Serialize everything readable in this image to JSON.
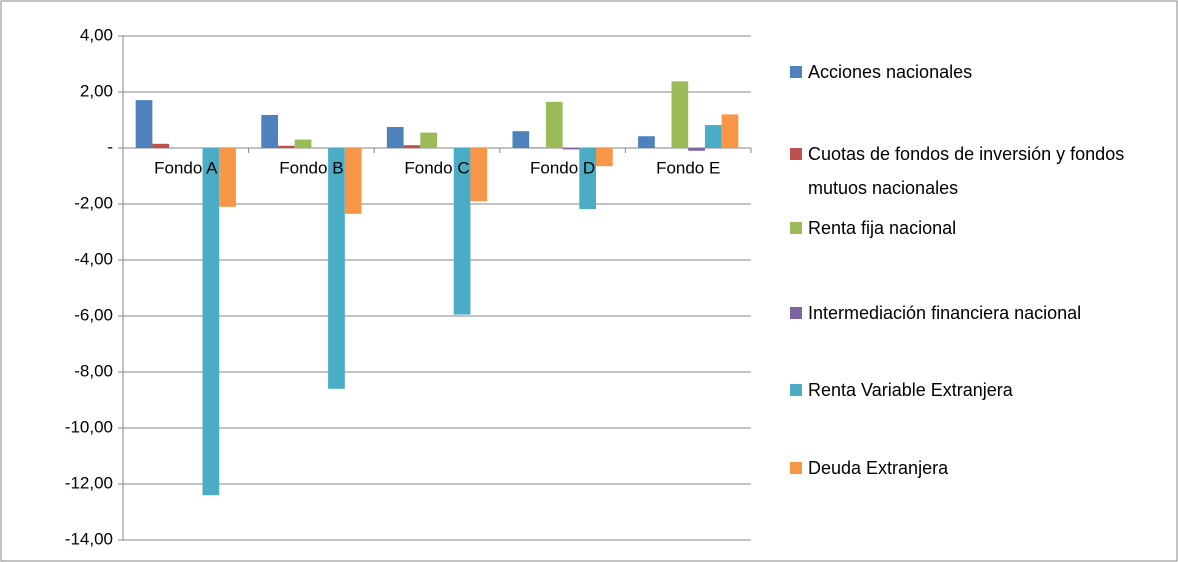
{
  "chart_data": {
    "type": "bar",
    "categories": [
      "Fondo A",
      "Fondo B",
      "Fondo C",
      "Fondo D",
      "Fondo E"
    ],
    "series": [
      {
        "name": "Acciones nacionales",
        "color": "#4f81bd",
        "values": [
          1.71,
          1.18,
          0.75,
          0.6,
          0.42
        ]
      },
      {
        "name": "Cuotas de fondos de inversión y fondos mutuos nacionales",
        "color": "#c0504d",
        "values": [
          0.15,
          0.08,
          0.1,
          0.02,
          0.01
        ]
      },
      {
        "name": "Renta fija nacional",
        "color": "#9bbb59",
        "values": [
          0.0,
          0.3,
          0.55,
          1.65,
          2.38
        ]
      },
      {
        "name": "Intermediación financiera nacional",
        "color": "#8064a2",
        "values": [
          0.0,
          0.0,
          0.0,
          -0.05,
          -0.1
        ]
      },
      {
        "name": "Renta Variable Extranjera",
        "color": "#4bacc6",
        "values": [
          -12.4,
          -8.6,
          -5.95,
          -2.18,
          0.82
        ]
      },
      {
        "name": "Deuda Extranjera",
        "color": "#f79646",
        "values": [
          -2.1,
          -2.35,
          -1.9,
          -0.65,
          1.2
        ]
      }
    ],
    "ylim": [
      -14,
      4
    ],
    "yticks": [
      {
        "value": -14,
        "label": "-14,00"
      },
      {
        "value": -12,
        "label": "-12,00"
      },
      {
        "value": -10,
        "label": "-10,00"
      },
      {
        "value": -8,
        "label": "-8,00"
      },
      {
        "value": -6,
        "label": "-6,00"
      },
      {
        "value": -4,
        "label": "-4,00"
      },
      {
        "value": -2,
        "label": "-2,00"
      },
      {
        "value": 0,
        "label": "-"
      },
      {
        "value": 2,
        "label": "2,00"
      },
      {
        "value": 4,
        "label": "4,00"
      }
    ],
    "grid": true,
    "legend": "right"
  }
}
